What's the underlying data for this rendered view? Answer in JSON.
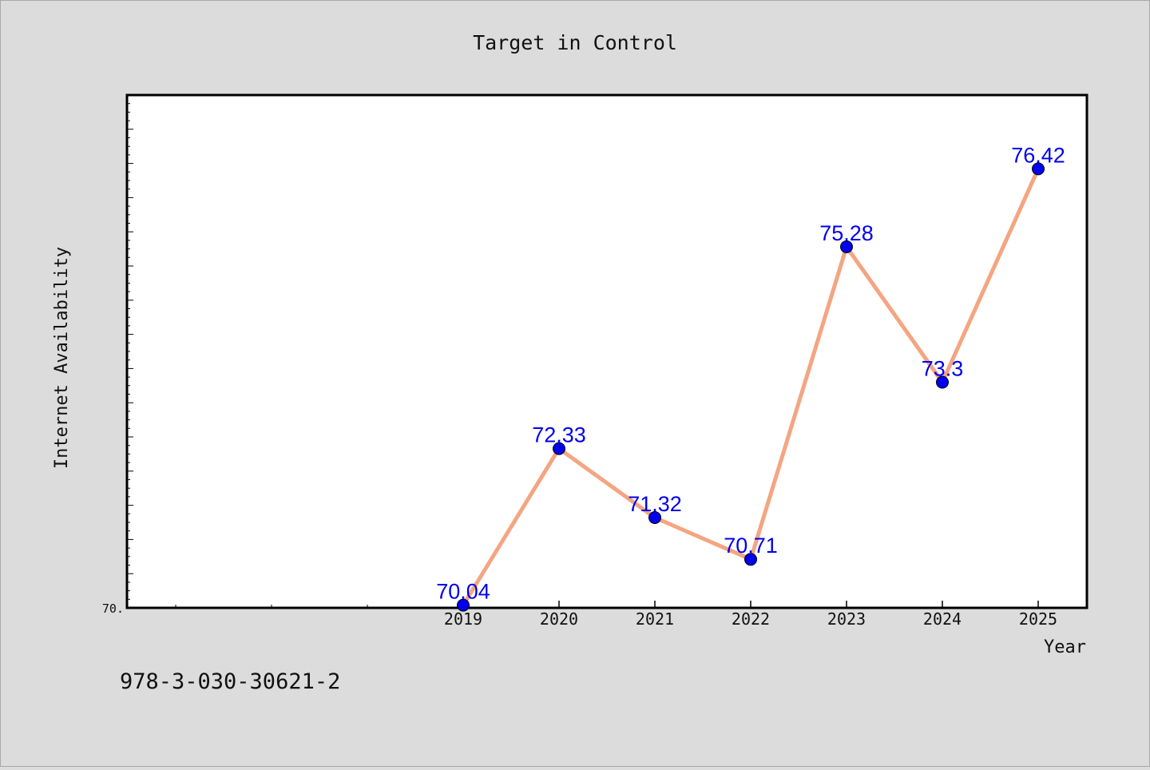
{
  "chart_data": {
    "type": "line",
    "title": "Target in Control",
    "xlabel": "Year",
    "ylabel": "Internet Availability",
    "categories": [
      "2019",
      "2020",
      "2021",
      "2022",
      "2023",
      "2024",
      "2025"
    ],
    "x_tick_labels": [
      "2019",
      "2020",
      "2021",
      "2022",
      "2023",
      "2024",
      "2025"
    ],
    "y_tick_labels": [
      "70."
    ],
    "series": [
      {
        "values": [
          70.04,
          72.33,
          71.32,
          70.71,
          75.28,
          73.3,
          76.42
        ],
        "data_labels": [
          "70.04",
          "72.33",
          "71.32",
          "70.71",
          "75.28",
          "73.3",
          "76.42"
        ]
      }
    ],
    "ylim": [
      70,
      77.5
    ],
    "grid": false,
    "legend": "none",
    "line_color": "#f4a582",
    "marker_color": "#0000ee",
    "label_color": "#0000ee"
  },
  "footer": {
    "text": "978-3-030-30621-2"
  }
}
